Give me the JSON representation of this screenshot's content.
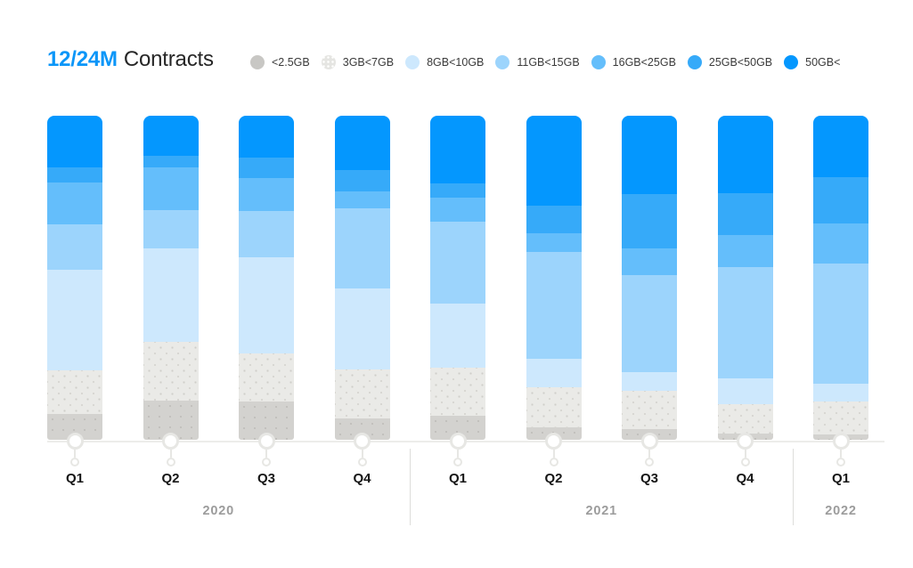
{
  "title": {
    "highlight": "12/24M",
    "rest": "Contracts"
  },
  "chart_data": {
    "type": "bar",
    "stacked": true,
    "values_unit": "percent_of_bar_total",
    "title": "12/24M Contracts",
    "categories": [
      "Q1",
      "Q2",
      "Q3",
      "Q4",
      "Q1",
      "Q2",
      "Q3",
      "Q4",
      "Q1"
    ],
    "groups": [
      {
        "label": "2020",
        "count": 4
      },
      {
        "label": "2021",
        "count": 4
      },
      {
        "label": "2022",
        "count": 1
      }
    ],
    "series": [
      {
        "name": "<2.5GB",
        "color": "#D3D2CF",
        "textured": "light",
        "values": [
          8.0,
          12.1,
          11.8,
          6.6,
          7.4,
          3.9,
          3.3,
          1.9,
          1.7
        ]
      },
      {
        "name": "3GB<7GB",
        "color": "#EAEAE7",
        "textured": "dots",
        "values": [
          13.5,
          18.2,
          14.9,
          15.2,
          14.9,
          12.4,
          11.8,
          9.1,
          10.2
        ]
      },
      {
        "name": "8GB<10GB",
        "color": "#CDE8FD",
        "textured": "none",
        "values": [
          30.9,
          28.9,
          29.5,
          24.8,
          19.8,
          8.8,
          5.8,
          8.0,
          5.5
        ]
      },
      {
        "name": "11GB<15GB",
        "color": "#9CD4FC",
        "textured": "none",
        "values": [
          14.0,
          11.6,
          14.3,
          24.8,
          25.1,
          32.8,
          30.0,
          34.4,
          36.9
        ]
      },
      {
        "name": "16GB<25GB",
        "color": "#64BEFB",
        "textured": "none",
        "values": [
          12.9,
          13.2,
          10.2,
          5.2,
          7.4,
          5.8,
          8.0,
          9.9,
          12.4
        ]
      },
      {
        "name": "25GB<50GB",
        "color": "#36AAF9",
        "textured": "none",
        "values": [
          4.7,
          3.6,
          6.3,
          6.6,
          4.4,
          8.5,
          16.8,
          12.7,
          14.3
        ]
      },
      {
        "name": "50GB<",
        "color": "#0497FE",
        "textured": "none",
        "values": [
          16.0,
          12.4,
          12.9,
          16.8,
          20.9,
          27.8,
          24.2,
          24.0,
          19.0
        ]
      }
    ],
    "legend_position": "top",
    "grid": false,
    "ylim": [
      0,
      100
    ]
  },
  "legend_swatch_override": {
    "<2.5GB": "#C8C7C4"
  }
}
